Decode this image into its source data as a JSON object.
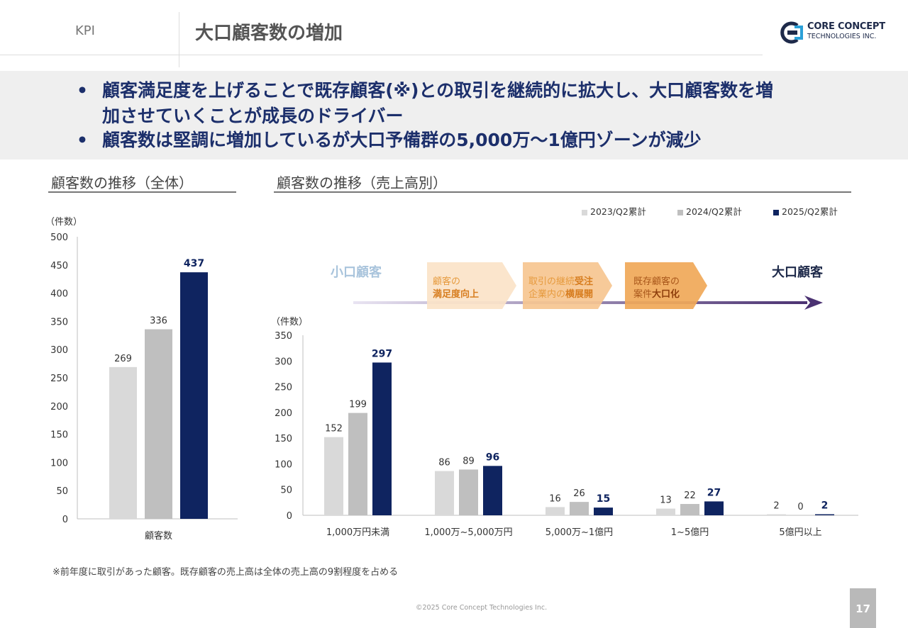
{
  "header": {
    "section": "KPI",
    "title": "大口顧客数の増加",
    "logo_line1": "CORE CONCEPT",
    "logo_line2": "TECHNOLOGIES INC."
  },
  "banner": {
    "bullets": [
      {
        "line1": "顧客満足度を上げることで既存顧客(※)との取引を継続的に拡大し、大口顧客数を増",
        "line2": "加させていくことが成長のドライバー"
      },
      {
        "line1": "顧客数は堅調に増加しているが大口予備群の5,000万～1億円ゾーンが減少",
        "line2": ""
      }
    ]
  },
  "left_section": {
    "title": "顧客数の推移（全体）"
  },
  "right_section": {
    "title": "顧客数の推移（売上高別）"
  },
  "legend": {
    "items": [
      "2023/Q2累計",
      "2024/Q2累計",
      "2025/Q2累計"
    ]
  },
  "flow": {
    "small_label": "小口顧客",
    "large_label": "大口顧客",
    "steps": [
      {
        "line1": "顧客の",
        "line2": "満足度向上"
      },
      {
        "line1_normal": "取引の継続",
        "line1_bold": "受注",
        "line2_normal": "企業内の",
        "line2_bold": "横展開"
      },
      {
        "line1": "既存顧客の",
        "line2_normal": "案件",
        "line2_bold": "大口化"
      }
    ]
  },
  "colors": {
    "y2023": "#d9d9d9",
    "y2024": "#bfbfbf",
    "y2025": "#0f2460"
  },
  "chart_data": [
    {
      "type": "bar",
      "title": "顧客数の推移（全体）",
      "unit_label": "（件数）",
      "categories": [
        "顧客数"
      ],
      "series": [
        {
          "name": "2023/Q2累計",
          "values": [
            269
          ]
        },
        {
          "name": "2024/Q2累計",
          "values": [
            336
          ]
        },
        {
          "name": "2025/Q2累計",
          "values": [
            437
          ]
        }
      ],
      "ylim": [
        0,
        500
      ],
      "yticks": [
        0,
        50,
        100,
        150,
        200,
        250,
        300,
        350,
        400,
        450,
        500
      ]
    },
    {
      "type": "bar",
      "title": "顧客数の推移（売上高別）",
      "unit_label": "（件数）",
      "categories": [
        "1,000万円未満",
        "1,000万~5,000万円",
        "5,000万~1億円",
        "1~5億円",
        "5億円以上"
      ],
      "series": [
        {
          "name": "2023/Q2累計",
          "values": [
            152,
            86,
            16,
            13,
            2
          ]
        },
        {
          "name": "2024/Q2累計",
          "values": [
            199,
            89,
            26,
            22,
            0
          ]
        },
        {
          "name": "2025/Q2累計",
          "values": [
            297,
            96,
            15,
            27,
            2
          ]
        }
      ],
      "ylim": [
        0,
        350
      ],
      "yticks": [
        0,
        50,
        100,
        150,
        200,
        250,
        300,
        350
      ],
      "legend_position": "top-right"
    }
  ],
  "footnote": "※前年度に取引があった顧客。既存顧客の売上高は全体の売上高の9割程度を占める",
  "copyright": "©2025 Core Concept Technologies Inc.",
  "page_number": "17"
}
